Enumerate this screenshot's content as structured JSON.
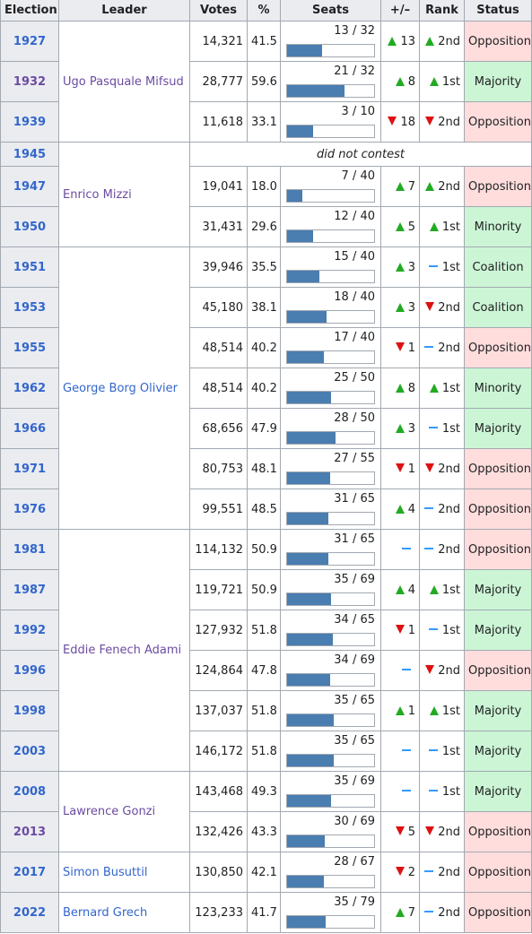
{
  "headers": [
    "Election",
    "Leader",
    "Votes",
    "%",
    "Seats",
    "+/–",
    "Rank",
    "Status"
  ],
  "rows": [
    {
      "year": "1927",
      "leader": "Ugo Pasquale Mifsud",
      "votes": "14,321",
      "pct": "41.5",
      "seats": "13 / 32",
      "seat_fraction": 0.406,
      "change_dir": "up",
      "change": "13",
      "rank_dir": "up",
      "rank": "2nd",
      "status": "Opposition"
    },
    {
      "year": "1932",
      "votes": "28,777",
      "pct": "59.6",
      "seats": "21 / 32",
      "seat_fraction": 0.656,
      "change_dir": "up",
      "change": "8",
      "rank_dir": "up",
      "rank": "1st",
      "status": "Majority"
    },
    {
      "year": "1939",
      "votes": "11,618",
      "pct": "33.1",
      "seats": "3 / 10",
      "seat_fraction": 0.3,
      "change_dir": "down",
      "change": "18",
      "rank_dir": "down",
      "rank": "2nd",
      "status": "Opposition"
    },
    {
      "year": "1945",
      "leader": "Enrico Mizzi",
      "did_not_contest": "did not contest"
    },
    {
      "year": "1947",
      "votes": "19,041",
      "pct": "18.0",
      "seats": "7 / 40",
      "seat_fraction": 0.175,
      "change_dir": "up",
      "change": "7",
      "rank_dir": "up",
      "rank": "2nd",
      "status": "Opposition"
    },
    {
      "year": "1950",
      "votes": "31,431",
      "pct": "29.6",
      "seats": "12 / 40",
      "seat_fraction": 0.3,
      "change_dir": "up",
      "change": "5",
      "rank_dir": "up",
      "rank": "1st",
      "status": "Minority"
    },
    {
      "year": "1951",
      "leader": "George Borg Olivier",
      "votes": "39,946",
      "pct": "35.5",
      "seats": "15 / 40",
      "seat_fraction": 0.375,
      "change_dir": "up",
      "change": "3",
      "rank_dir": "same",
      "rank": "1st",
      "status": "Coalition"
    },
    {
      "year": "1953",
      "votes": "45,180",
      "pct": "38.1",
      "seats": "18 / 40",
      "seat_fraction": 0.45,
      "change_dir": "up",
      "change": "3",
      "rank_dir": "down",
      "rank": "2nd",
      "status": "Coalition"
    },
    {
      "year": "1955",
      "votes": "48,514",
      "pct": "40.2",
      "seats": "17 / 40",
      "seat_fraction": 0.425,
      "change_dir": "down",
      "change": "1",
      "rank_dir": "same",
      "rank": "2nd",
      "status": "Opposition"
    },
    {
      "year": "1962",
      "votes": "48,514",
      "pct": "40.2",
      "seats": "25 / 50",
      "seat_fraction": 0.5,
      "change_dir": "up",
      "change": "8",
      "rank_dir": "up",
      "rank": "1st",
      "status": "Minority"
    },
    {
      "year": "1966",
      "votes": "68,656",
      "pct": "47.9",
      "seats": "28 / 50",
      "seat_fraction": 0.56,
      "change_dir": "up",
      "change": "3",
      "rank_dir": "same",
      "rank": "1st",
      "status": "Majority"
    },
    {
      "year": "1971",
      "votes": "80,753",
      "pct": "48.1",
      "seats": "27 / 55",
      "seat_fraction": 0.491,
      "change_dir": "down",
      "change": "1",
      "rank_dir": "down",
      "rank": "2nd",
      "status": "Opposition"
    },
    {
      "year": "1976",
      "votes": "99,551",
      "pct": "48.5",
      "seats": "31 / 65",
      "seat_fraction": 0.477,
      "change_dir": "up",
      "change": "4",
      "rank_dir": "same",
      "rank": "2nd",
      "status": "Opposition"
    },
    {
      "year": "1981",
      "leader": "Eddie Fenech Adami",
      "votes": "114,132",
      "pct": "50.9",
      "seats": "31 / 65",
      "seat_fraction": 0.477,
      "change_dir": "same",
      "change": "",
      "rank_dir": "same",
      "rank": "2nd",
      "status": "Opposition"
    },
    {
      "year": "1987",
      "votes": "119,721",
      "pct": "50.9",
      "seats": "35 / 69",
      "seat_fraction": 0.507,
      "change_dir": "up",
      "change": "4",
      "rank_dir": "up",
      "rank": "1st",
      "status": "Majority"
    },
    {
      "year": "1992",
      "votes": "127,932",
      "pct": "51.8",
      "seats": "34 / 65",
      "seat_fraction": 0.523,
      "change_dir": "down",
      "change": "1",
      "rank_dir": "same",
      "rank": "1st",
      "status": "Majority"
    },
    {
      "year": "1996",
      "votes": "124,864",
      "pct": "47.8",
      "seats": "34 / 69",
      "seat_fraction": 0.493,
      "change_dir": "same",
      "change": "",
      "rank_dir": "down",
      "rank": "2nd",
      "status": "Opposition"
    },
    {
      "year": "1998",
      "votes": "137,037",
      "pct": "51.8",
      "seats": "35 / 65",
      "seat_fraction": 0.538,
      "change_dir": "up",
      "change": "1",
      "rank_dir": "up",
      "rank": "1st",
      "status": "Majority"
    },
    {
      "year": "2003",
      "votes": "146,172",
      "pct": "51.8",
      "seats": "35 / 65",
      "seat_fraction": 0.538,
      "change_dir": "same",
      "change": "",
      "rank_dir": "same",
      "rank": "1st",
      "status": "Majority"
    },
    {
      "year": "2008",
      "leader": "Lawrence Gonzi",
      "votes": "143,468",
      "pct": "49.3",
      "seats": "35 / 69",
      "seat_fraction": 0.507,
      "change_dir": "same",
      "change": "",
      "rank_dir": "same",
      "rank": "1st",
      "status": "Majority"
    },
    {
      "year": "2013",
      "votes": "132,426",
      "pct": "43.3",
      "seats": "30 / 69",
      "seat_fraction": 0.435,
      "change_dir": "down",
      "change": "5",
      "rank_dir": "down",
      "rank": "2nd",
      "status": "Opposition"
    },
    {
      "year": "2017",
      "leader": "Simon Busuttil",
      "votes": "130,850",
      "pct": "42.1",
      "seats": "28 / 67",
      "seat_fraction": 0.418,
      "change_dir": "down",
      "change": "2",
      "rank_dir": "same",
      "rank": "2nd",
      "status": "Opposition"
    },
    {
      "year": "2022",
      "leader": "Bernard Grech",
      "votes": "123,233",
      "pct": "41.7",
      "seats": "35 / 79",
      "seat_fraction": 0.443,
      "change_dir": "up",
      "change": "7",
      "rank_dir": "same",
      "rank": "2nd",
      "status": "Opposition"
    }
  ],
  "colors": {
    "header_bg": "#eaecf0",
    "opposition": "#ffdddd",
    "government": "#ccf5d6",
    "bar": "#4a7db0",
    "up": "#22aa22",
    "down": "#dd1111",
    "same": "#3399ff"
  }
}
